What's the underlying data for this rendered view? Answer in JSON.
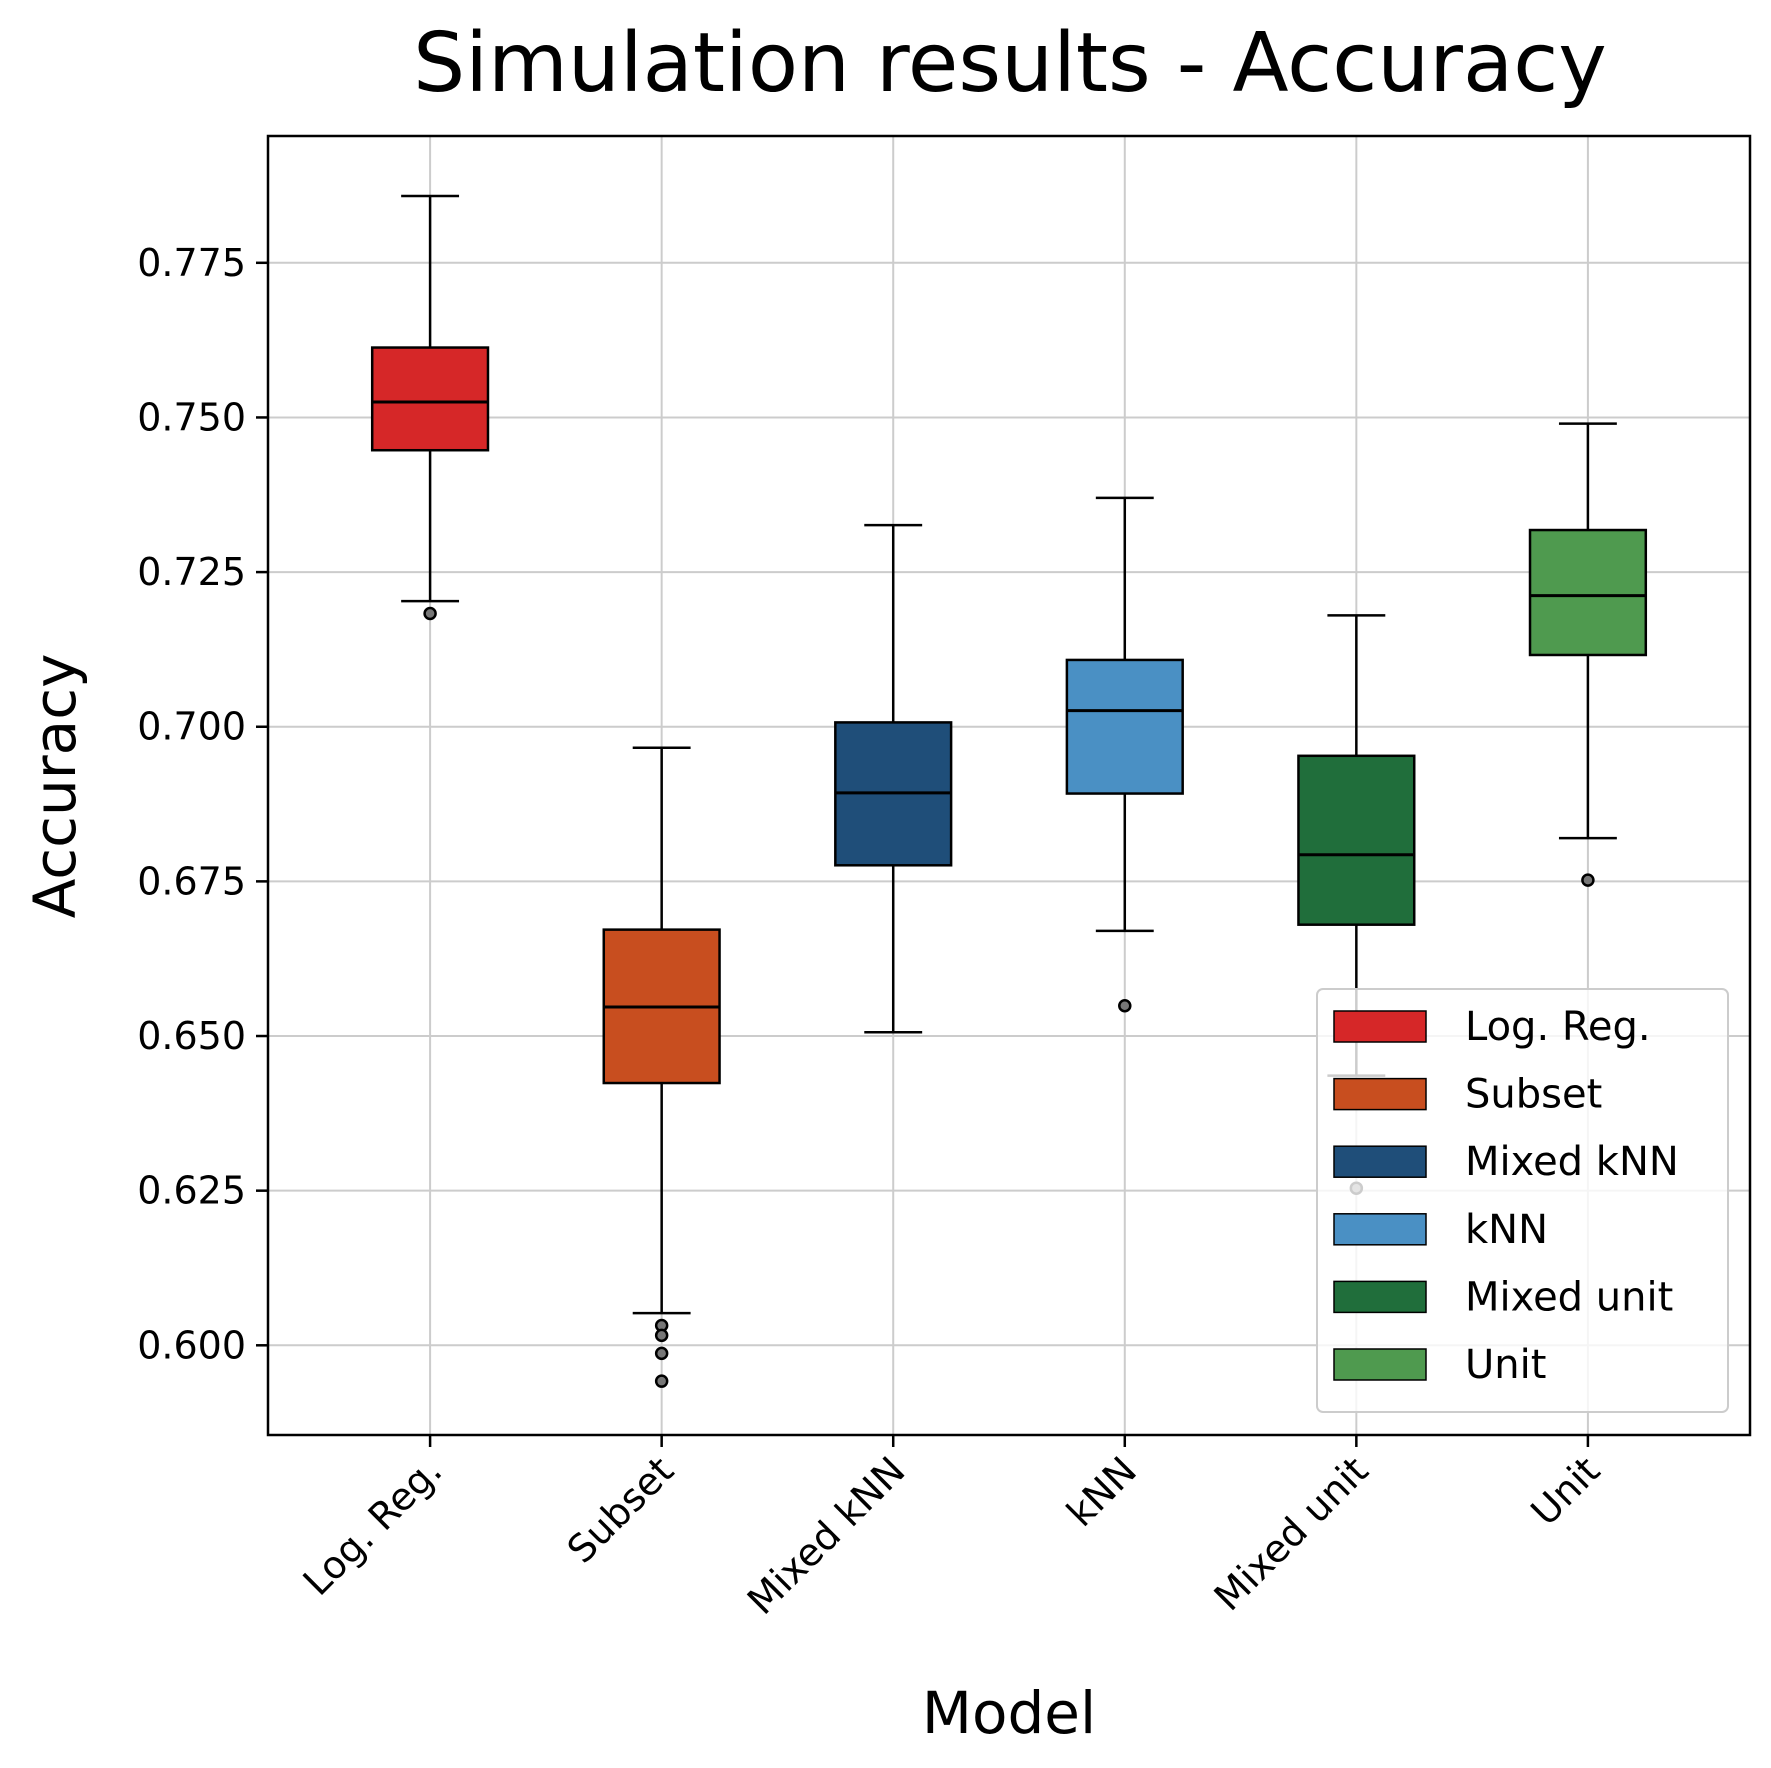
{
  "chart_data": {
    "type": "boxplot",
    "title": "Simulation results - Accuracy",
    "xlabel": "Model",
    "ylabel": "Accuracy",
    "ylim": [
      0.5855,
      0.7955
    ],
    "yticks": [
      0.6,
      0.625,
      0.65,
      0.675,
      0.7,
      0.725,
      0.75,
      0.775
    ],
    "ytick_labels": [
      "0.600",
      "0.625",
      "0.650",
      "0.675",
      "0.700",
      "0.725",
      "0.750",
      "0.775"
    ],
    "grid": true,
    "legend_position": "lower-right",
    "categories": [
      "Log. Reg.",
      "Subset",
      "Mixed kNN",
      "kNN",
      "Mixed unit",
      "Unit"
    ],
    "series": [
      {
        "name": "Log. Reg.",
        "color": "#d62728",
        "whisker_low": 0.7203,
        "q1": 0.7447,
        "median": 0.7525,
        "q3": 0.7613,
        "whisker_high": 0.7858,
        "outliers": [
          0.7183
        ]
      },
      {
        "name": "Subset",
        "color": "#c84e1f",
        "whisker_low": 0.6052,
        "q1": 0.6424,
        "median": 0.6547,
        "q3": 0.6672,
        "whisker_high": 0.6966,
        "outliers": [
          0.6032,
          0.6016,
          0.5987,
          0.5942
        ]
      },
      {
        "name": "Mixed kNN",
        "color": "#1f4e79",
        "whisker_low": 0.6506,
        "q1": 0.6776,
        "median": 0.6893,
        "q3": 0.7007,
        "whisker_high": 0.7326,
        "outliers": []
      },
      {
        "name": "kNN",
        "color": "#4a90c4",
        "whisker_low": 0.667,
        "q1": 0.6892,
        "median": 0.7026,
        "q3": 0.7108,
        "whisker_high": 0.737,
        "outliers": [
          0.6549
        ]
      },
      {
        "name": "Mixed unit",
        "color": "#206e3b",
        "whisker_low": 0.6436,
        "q1": 0.668,
        "median": 0.6793,
        "q3": 0.6953,
        "whisker_high": 0.718,
        "outliers": [
          0.6254
        ]
      },
      {
        "name": "Unit",
        "color": "#4f9a4f",
        "whisker_low": 0.682,
        "q1": 0.7116,
        "median": 0.7212,
        "q3": 0.7318,
        "whisker_high": 0.749,
        "outliers": [
          0.6752
        ]
      }
    ]
  }
}
